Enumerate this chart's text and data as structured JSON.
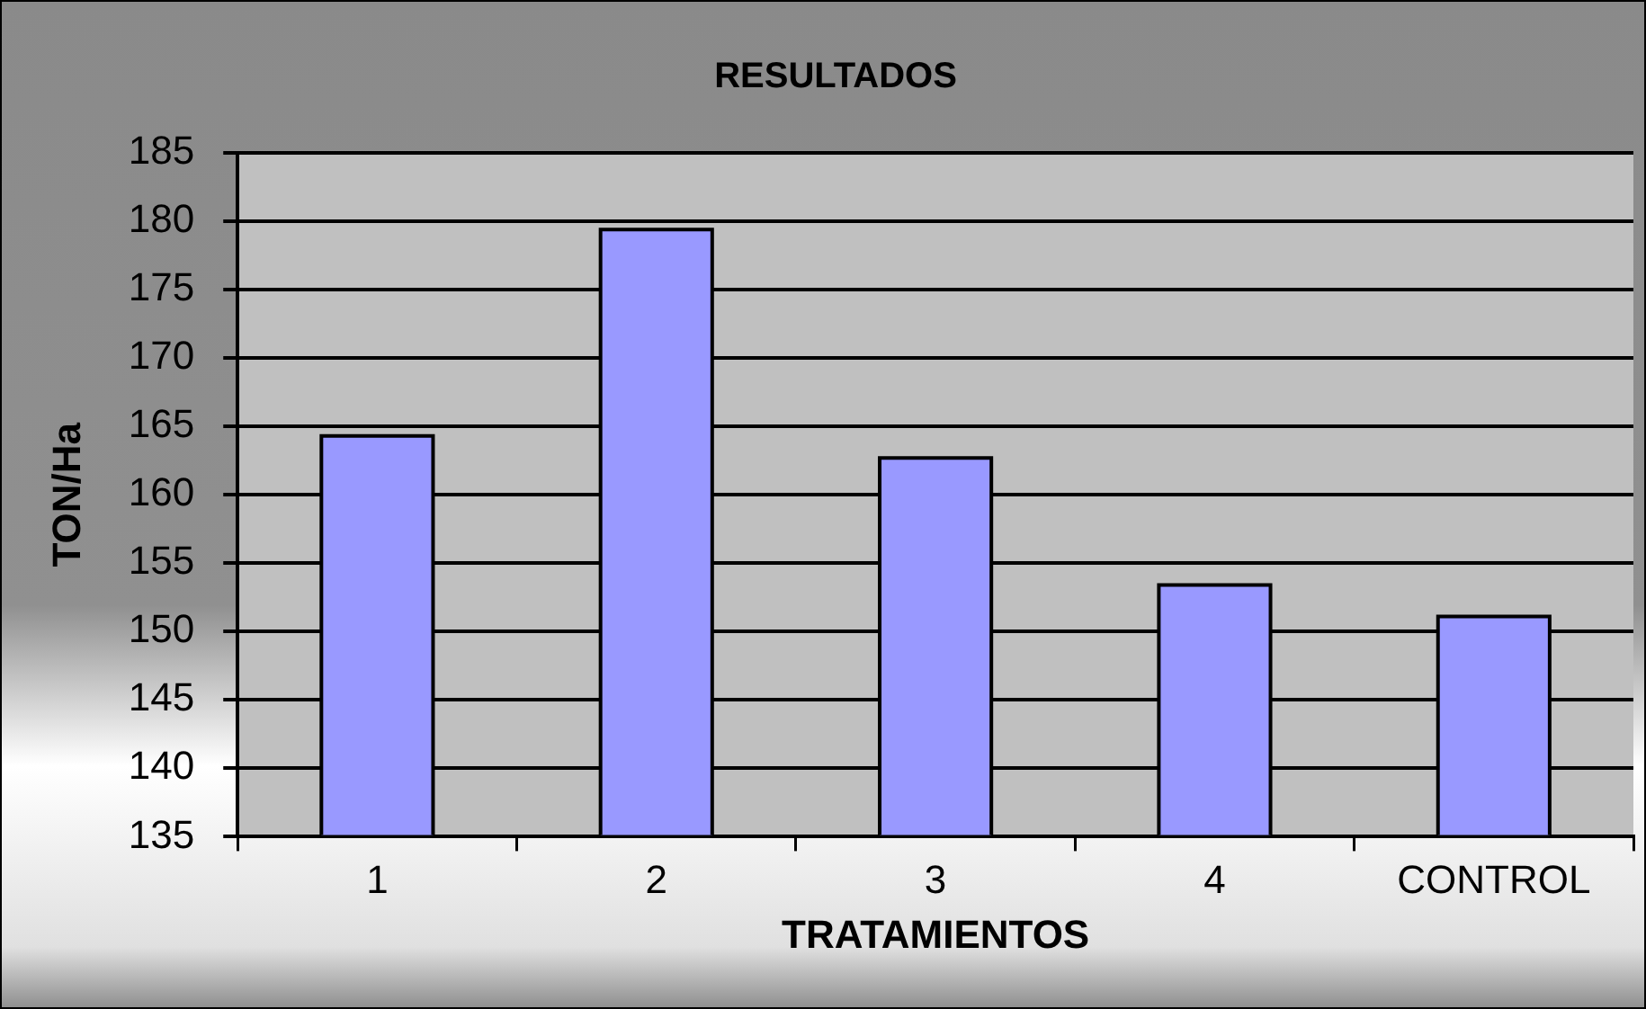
{
  "chart_data": {
    "type": "bar",
    "title": "RESULTADOS",
    "xlabel": "TRATAMIENTOS",
    "ylabel": "TON/Ha",
    "categories": [
      "1",
      "2",
      "3",
      "4",
      "CONTROL"
    ],
    "values": [
      164.3,
      179.4,
      162.7,
      153.4,
      151.1
    ],
    "color": "#9999ff",
    "ylim": [
      135,
      185
    ],
    "yticks": [
      135,
      140,
      145,
      150,
      155,
      160,
      165,
      170,
      175,
      180,
      185
    ],
    "grid": "y",
    "legend": false
  }
}
